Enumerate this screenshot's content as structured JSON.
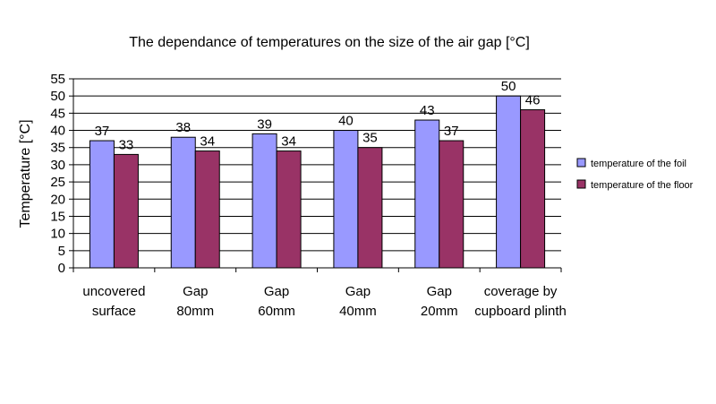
{
  "chart_data": {
    "type": "bar",
    "title": "The dependance of temperatures on the size of the air gap [°C]",
    "xlabel": "",
    "ylabel": "Temperature [°C]",
    "ylim": [
      0,
      55
    ],
    "ytick_step": 5,
    "grid": true,
    "legend_position": "right",
    "categories": [
      [
        "uncovered",
        "surface"
      ],
      [
        "Gap",
        "80mm"
      ],
      [
        "Gap",
        "60mm"
      ],
      [
        "Gap",
        "40mm"
      ],
      [
        "Gap",
        "20mm"
      ],
      [
        "coverage by",
        "cupboard plinth"
      ]
    ],
    "series": [
      {
        "name": "temperature of the foil",
        "color": "#9999ff",
        "values": [
          37,
          38,
          39,
          40,
          43,
          50
        ]
      },
      {
        "name": "temperature of the floor",
        "color": "#993366",
        "values": [
          33,
          34,
          34,
          35,
          37,
          46
        ]
      }
    ]
  }
}
